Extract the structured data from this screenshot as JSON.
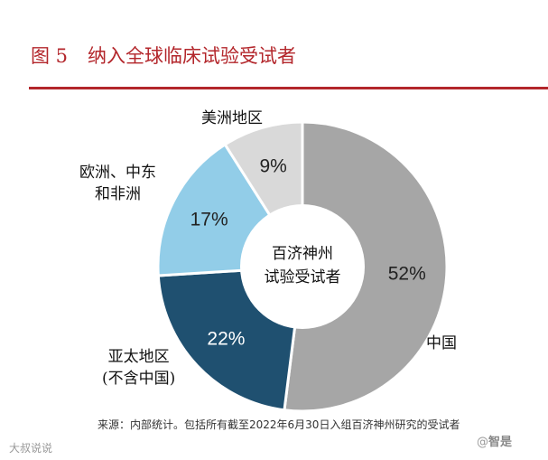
{
  "header": {
    "figure_label": "图 5",
    "title": "纳入全球临床试验受试者"
  },
  "chart_data": {
    "type": "pie",
    "variant": "donut",
    "center_label_lines": [
      "百济神州",
      "试验受试者"
    ],
    "slices": [
      {
        "label": "中国",
        "value": 52,
        "value_label": "52%",
        "color": "#a6a6a6"
      },
      {
        "label": "亚太地区\n(不含中国)",
        "value": 22,
        "value_label": "22%",
        "color": "#1f5070"
      },
      {
        "label": "欧洲、中东\n和非洲",
        "value": 17,
        "value_label": "17%",
        "color": "#92cde8"
      },
      {
        "label": "美洲地区",
        "value": 9,
        "value_label": "9%",
        "color": "#d9d9d9"
      }
    ],
    "start_angle_deg": 0,
    "direction": "clockwise"
  },
  "footer": {
    "source": "来源：内部统计。包括所有截至2022年6月30日入组百济神州研究的受试者"
  },
  "watermarks": {
    "left": "大叔说说",
    "right_prefix": "@",
    "right_brand": "智是"
  }
}
